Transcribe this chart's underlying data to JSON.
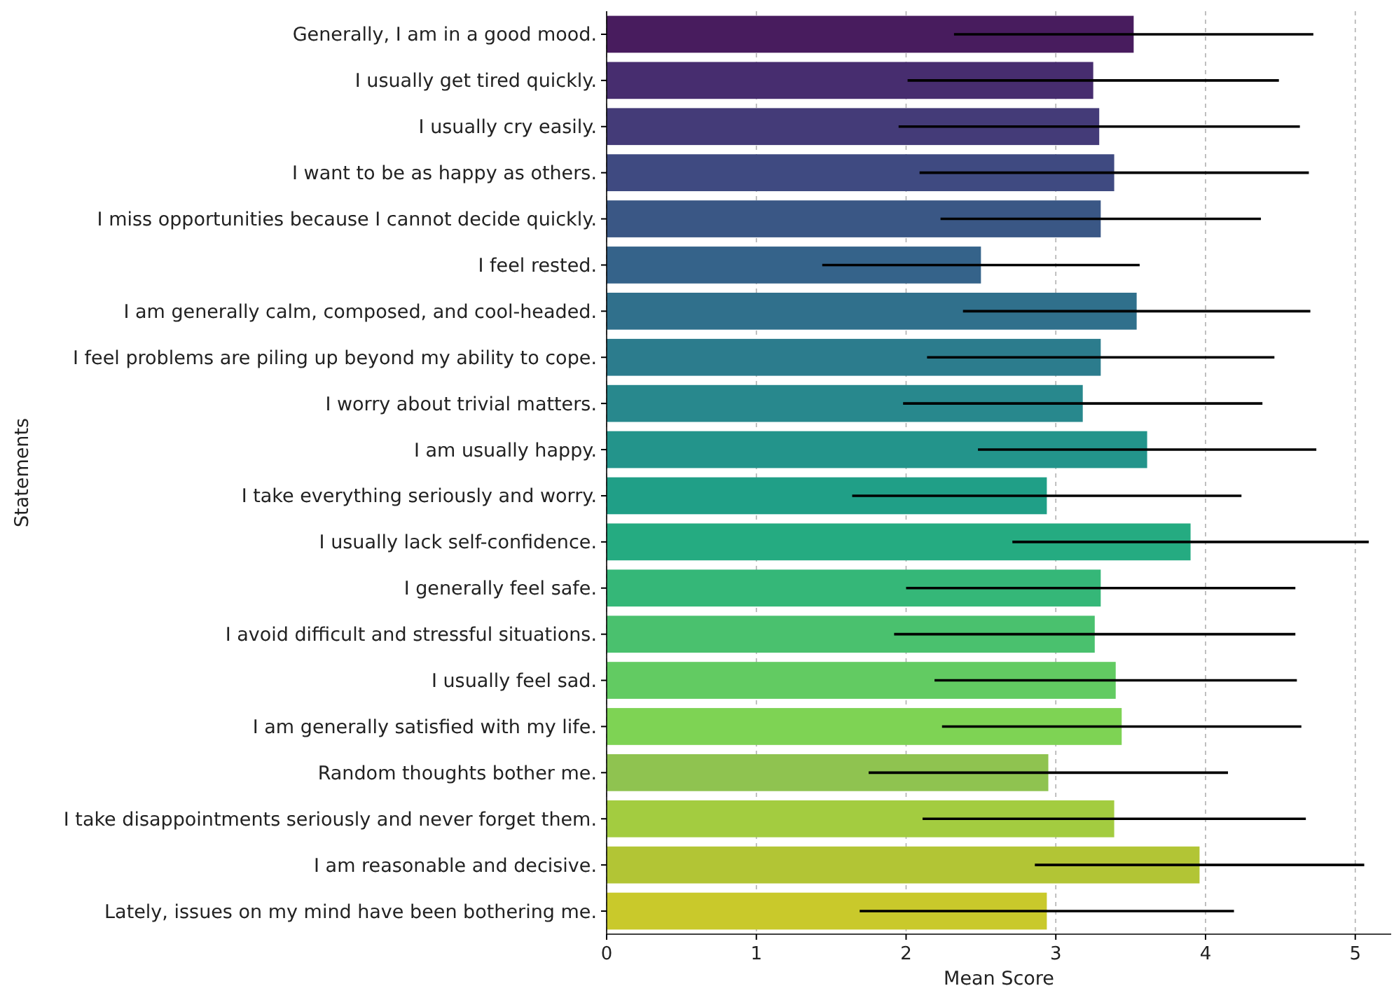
{
  "chart_data": {
    "type": "bar",
    "orientation": "horizontal",
    "xlabel": "Mean Score",
    "ylabel": "Statements",
    "categories": [
      "Generally, I am in a good mood.",
      "I usually get tired quickly.",
      "I usually cry easily.",
      "I want to be as happy as others.",
      "I miss opportunities because I cannot decide quickly.",
      "I feel rested.",
      "I am generally calm, composed, and cool-headed.",
      "I feel problems are piling up beyond my ability to cope.",
      "I worry about trivial matters.",
      "I am usually happy.",
      "I take everything seriously and worry.",
      "I usually lack self-confidence.",
      "I generally feel safe.",
      "I avoid difficult and stressful situations.",
      "I usually feel sad.",
      "I am generally satisfied with my life.",
      "Random thoughts bother me.",
      "I take disappointments seriously and never forget them.",
      "I am reasonable and decisive.",
      "Lately, issues on my mind have been bothering me."
    ],
    "values": [
      3.52,
      3.25,
      3.29,
      3.39,
      3.3,
      2.5,
      3.54,
      3.3,
      3.18,
      3.61,
      2.94,
      3.9,
      3.3,
      3.26,
      3.4,
      3.44,
      2.95,
      3.39,
      3.96,
      2.94
    ],
    "errors": [
      1.2,
      1.24,
      1.34,
      1.3,
      1.07,
      1.06,
      1.16,
      1.16,
      1.2,
      1.13,
      1.3,
      1.19,
      1.3,
      1.34,
      1.21,
      1.2,
      1.2,
      1.28,
      1.1,
      1.25
    ],
    "colors": [
      "#481c5e",
      "#472d6f",
      "#443b78",
      "#3f4a81",
      "#3a5785",
      "#35638a",
      "#30708c",
      "#2c7c8d",
      "#28888d",
      "#23948b",
      "#209f87",
      "#25ab81",
      "#35b778",
      "#4ac16e",
      "#62cb62",
      "#7ed354",
      "#8fc350",
      "#a3cc40",
      "#b2c535",
      "#c9c92b"
    ],
    "xlim": [
      0,
      5.24
    ],
    "xticks": [
      0,
      1,
      2,
      3,
      4,
      5
    ],
    "grid": "x"
  }
}
